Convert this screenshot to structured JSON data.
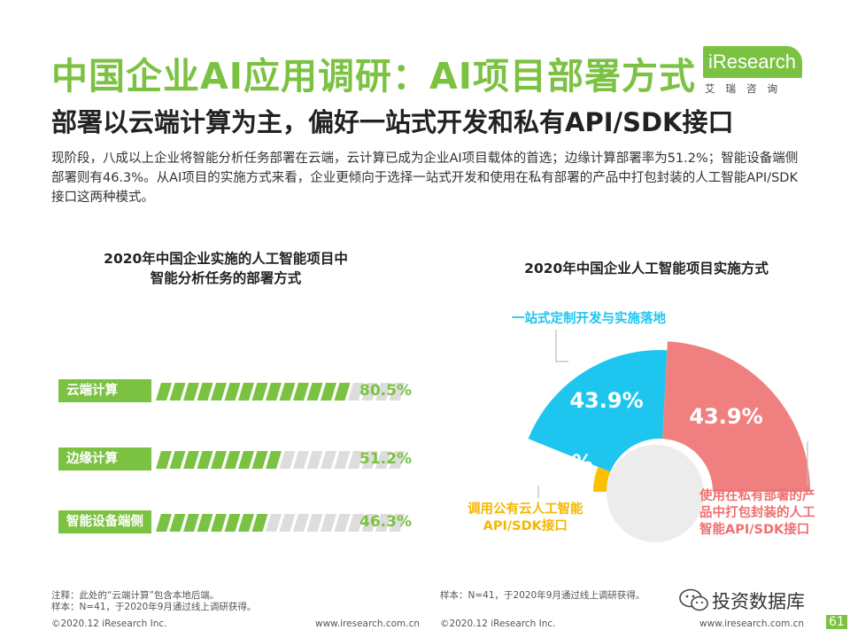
{
  "header": {
    "title": "中国企业AI应用调研：AI项目部署方式",
    "subtitle": "部署以云端计算为主，偏好一站式开发和私有API/SDK接口",
    "description": "现阶段，八成以上企业将智能分析任务部署在云端，云计算已成为企业AI项目载体的首选；边缘计算部署率为51.2%；智能设备端侧部署则有46.3%。从AI项目的实施方式来看，企业更倾向于选择一站式开发和使用在私有部署的产品中打包封装的人工智能API/SDK接口这两种模式。"
  },
  "logo": {
    "name": "iResearch",
    "sub": "艾瑞咨询"
  },
  "chart_data": [
    {
      "type": "bar",
      "title": "2020年中国企业实施的人工智能项目中\n智能分析任务的部署方式",
      "title_lines": [
        "2020年中国企业实施的人工智能项目中",
        "智能分析任务的部署方式"
      ],
      "categories": [
        "云端计算",
        "边缘计算",
        "智能设备端侧"
      ],
      "values": [
        80.5,
        51.2,
        46.3
      ],
      "value_labels": [
        "80.5%",
        "51.2%",
        "46.3%"
      ],
      "ylim": [
        0,
        100
      ]
    },
    {
      "type": "pie",
      "title": "2020年中国企业人工智能项目实施方式",
      "categories": [
        "一站式定制开发与实施落地",
        "使用在私有部署的产品中打包封装的人工智能API/SDK接口",
        "调用公有云人工智能API/SDK接口"
      ],
      "category_label_lines": [
        [
          "一站式定制开发与实施落地"
        ],
        [
          "使用在私有部署的产",
          "品中打包封装的人工",
          "智能API/SDK接口"
        ],
        [
          "调用公有云人工智能",
          "API/SDK接口"
        ]
      ],
      "values": [
        43.9,
        43.9,
        12.2
      ],
      "value_labels": [
        "43.9%",
        "43.9%",
        "12.2%"
      ],
      "colors": [
        "#1ec6ef",
        "#f08080",
        "#fcc000"
      ]
    }
  ],
  "notes": {
    "left": [
      "注释：此处的“云端计算”包含本地后端。",
      "样本：N=41，于2020年9月通过线上调研获得。"
    ],
    "right": "样本：N=41，于2020年9月通过线上调研获得。"
  },
  "footer": {
    "left_copyright": "©2020.12 iResearch Inc.",
    "left_url": "www.iresearch.com.cn",
    "right_copyright": "©2020.12 iResearch Inc.",
    "right_url": "www.iresearch.com.cn"
  },
  "watermark": {
    "text": "投资数据库",
    "icon": "wechat-icon"
  },
  "page_number": "61",
  "colors": {
    "brand_green": "#7cc242",
    "stripe_gray": "#dddddd"
  }
}
